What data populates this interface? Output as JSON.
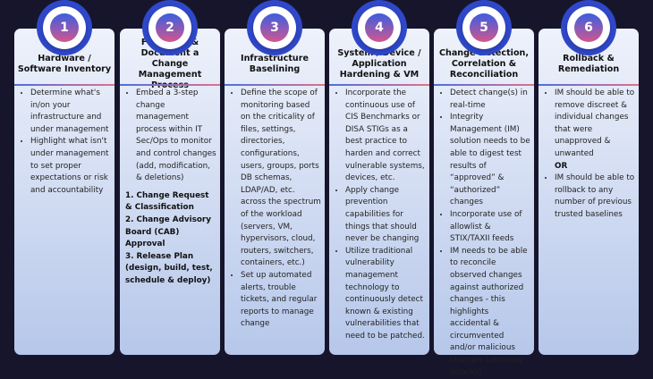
{
  "colors": {
    "background": "#16152c",
    "ring": "#2f47c9",
    "accent_start": "#3a5ee0",
    "accent_end": "#d2578e"
  },
  "cards": [
    {
      "num": "1",
      "title": "Hardware / Software Inventory",
      "bullets": [
        "Determine what's in/on your infrastructure and under management",
        "Highlight what isn't under management to set proper expectations or risk and accountability"
      ]
    },
    {
      "num": "2",
      "title": "Formalize & Document a Change Management Process",
      "bullets": [
        "Embed a 3-step change management process within IT Sec/Ops to monitor and control changes (add, modification, & deletions)"
      ],
      "steps": [
        "1. Change Request & Classification",
        "2. Change Advisory Board (CAB) Approval",
        "3. Release Plan (design, build, test, schedule & deploy)"
      ]
    },
    {
      "num": "3",
      "title": "Infrastructure Baselining",
      "bullets": [
        "Define the scope of monitoring based on the criticality of files, settings, directories, configurations, users, groups, ports DB schemas, LDAP/AD, etc. across the spectrum of the workload (servers, VM, hypervisors, cloud, routers, switchers, containers, etc.)",
        "Set up automated alerts, trouble tickets, and regular reports to manage change"
      ]
    },
    {
      "num": "4",
      "title": "System / Device / Application Hardening & VM",
      "bullets": [
        "Incorporate the continuous use of CIS Benchmarks or DISA STIGs as a best practice to harden and correct vulnerable systems, devices, etc.",
        "Apply change prevention capabilities for things that should never be changing",
        "Utilize traditional vulnerability management technology to continuously detect known & existing vulnerabilities that need to be patched."
      ]
    },
    {
      "num": "5",
      "title": "Change Detection, Correlation & Reconciliation",
      "bullets": [
        "Detect change(s) in real-time",
        "Integrity Management (IM) solution needs to be able to digest test results of “approved” & “authorized” changes",
        "Incorporate use of allowlist & STIX/TAXII feeds",
        "IM needs to be able to reconcile observed changes against authorized changes - this highlights accidental & circumvented and/or malicious changes (zero/day attacks)"
      ]
    },
    {
      "num": "6",
      "title": "Rollback & Remediation",
      "bullets": [
        "IM should be able to remove discreet & individual changes that were unapproved & unwanted"
      ],
      "or": "OR",
      "bullets2": [
        "IM should be able to rollback to any number of previous trusted baselines"
      ]
    }
  ]
}
